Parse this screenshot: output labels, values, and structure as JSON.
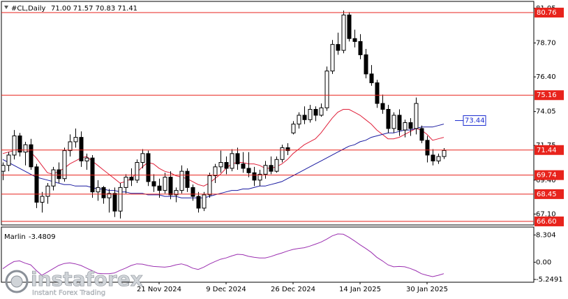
{
  "header": {
    "symbol": "#CL,Daily",
    "ohlc": "71.00 71.57 70.83 71.41"
  },
  "brand": {
    "name": "instaforex",
    "tagline": "Instant Forex Trading"
  },
  "chart_data": [
    {
      "type": "candlestick",
      "categories": [
        null,
        null,
        null,
        null,
        null,
        null,
        null,
        null,
        null,
        null,
        null,
        null,
        null,
        null,
        null,
        null,
        null,
        null,
        null,
        null,
        null,
        null,
        null,
        null,
        null,
        null,
        null,
        null,
        "21 Nov 2024",
        null,
        null,
        null,
        null,
        null,
        null,
        null,
        null,
        null,
        null,
        null,
        "9 Dec 2024",
        null,
        null,
        null,
        null,
        null,
        null,
        null,
        null,
        null,
        null,
        null,
        "26 Dec 2024",
        null,
        null,
        null,
        null,
        null,
        null,
        null,
        null,
        null,
        null,
        null,
        "14 Jan 2025",
        null,
        null,
        null,
        null,
        null,
        null,
        null,
        null,
        null,
        null,
        null,
        "30 Jan 2025",
        null,
        null,
        null
      ],
      "open": [
        70.0,
        70.4,
        71.1,
        72.4,
        71.3,
        71.8,
        70.3,
        67.9,
        68.3,
        69.0,
        70.1,
        69.5,
        71.4,
        72.0,
        72.3,
        70.7,
        70.9,
        68.6,
        68.9,
        68.2,
        68.5,
        67.3,
        68.9,
        69.6,
        69.4,
        70.6,
        71.2,
        69.3,
        69.0,
        68.7,
        69.6,
        68.4,
        68.7,
        70.0,
        68.9,
        68.3,
        67.5,
        68.4,
        69.7,
        70.3,
        70.6,
        70.2,
        71.2,
        70.5,
        70.2,
        69.9,
        69.4,
        69.8,
        70.4,
        70.0,
        70.8,
        71.6,
        72.6,
        73.2,
        73.8,
        73.5,
        74.2,
        73.8,
        74.3,
        76.8,
        78.6,
        78.2,
        80.6,
        79.0,
        78.8,
        77.9,
        76.6,
        76.0,
        74.6,
        74.2,
        72.9,
        73.8,
        72.8,
        73.3,
        72.9,
        72.9,
        72.1,
        71.1,
        70.7,
        71.0
      ],
      "high": [
        70.6,
        71.3,
        72.8,
        72.6,
        72.0,
        72.2,
        70.5,
        68.6,
        69.2,
        70.3,
        70.6,
        71.6,
        72.5,
        72.9,
        72.7,
        71.2,
        71.1,
        69.4,
        69.0,
        68.8,
        68.9,
        69.2,
        69.8,
        70.2,
        70.8,
        71.5,
        71.4,
        69.8,
        69.5,
        69.9,
        70.0,
        68.9,
        70.4,
        70.2,
        69.1,
        68.6,
        68.6,
        69.9,
        70.5,
        71.4,
        71.0,
        71.5,
        71.6,
        71.3,
        71.3,
        70.3,
        70.1,
        70.7,
        71.0,
        71.0,
        71.8,
        71.9,
        73.4,
        74.0,
        74.4,
        74.5,
        74.4,
        74.6,
        77.1,
        78.9,
        79.4,
        80.9,
        80.8,
        79.6,
        79.3,
        78.3,
        77.2,
        76.2,
        75.2,
        74.5,
        74.0,
        74.2,
        73.5,
        73.6,
        75.0,
        73.1,
        72.4,
        71.5,
        71.2,
        71.57
      ],
      "low": [
        69.4,
        70.0,
        70.8,
        71.0,
        70.4,
        70.1,
        67.5,
        67.2,
        67.8,
        68.7,
        69.2,
        69.3,
        71.0,
        71.6,
        70.3,
        70.1,
        68.2,
        68.0,
        67.8,
        67.2,
        66.9,
        66.8,
        68.5,
        69.0,
        69.2,
        70.2,
        69.0,
        68.6,
        68.2,
        68.5,
        68.1,
        67.9,
        68.5,
        68.6,
        68.0,
        67.2,
        67.3,
        68.2,
        69.2,
        69.9,
        69.8,
        70.0,
        70.1,
        69.9,
        69.6,
        69.0,
        69.0,
        69.5,
        69.8,
        69.9,
        70.6,
        71.1,
        72.5,
        72.9,
        73.2,
        73.3,
        73.4,
        73.7,
        74.1,
        76.6,
        77.9,
        78.0,
        78.8,
        78.4,
        77.6,
        76.3,
        75.8,
        74.3,
        73.9,
        72.6,
        72.6,
        72.4,
        72.3,
        72.4,
        72.5,
        71.9,
        70.6,
        70.4,
        70.5,
        70.83
      ],
      "close": [
        70.4,
        71.1,
        72.4,
        71.3,
        71.8,
        70.3,
        67.9,
        68.3,
        69.0,
        70.1,
        69.5,
        71.4,
        72.0,
        72.3,
        70.7,
        70.9,
        68.6,
        68.9,
        68.2,
        68.5,
        67.3,
        68.9,
        69.6,
        69.4,
        70.6,
        71.2,
        69.3,
        69.0,
        68.7,
        69.6,
        68.4,
        68.7,
        70.0,
        68.9,
        68.3,
        67.5,
        68.4,
        69.7,
        70.3,
        70.6,
        70.2,
        71.2,
        70.5,
        70.2,
        69.9,
        69.4,
        69.8,
        70.4,
        70.0,
        70.8,
        71.6,
        71.4,
        73.2,
        73.8,
        73.5,
        74.2,
        73.8,
        74.3,
        76.8,
        78.6,
        78.2,
        80.6,
        79.0,
        78.8,
        77.9,
        76.6,
        76.0,
        74.6,
        74.2,
        72.9,
        73.8,
        72.8,
        73.3,
        72.9,
        74.6,
        72.1,
        71.1,
        70.7,
        71.0,
        71.41
      ],
      "up_color": "#ffffff",
      "down_color": "#000000",
      "series": [
        {
          "color": "#e0203a",
          "values": [
            71.2,
            71.3,
            71.4,
            71.5,
            71.4,
            71.3,
            70.9,
            70.4,
            69.9,
            69.8,
            70.0,
            70.2,
            70.5,
            70.7,
            70.9,
            71.0,
            70.7,
            70.4,
            70.1,
            69.8,
            69.5,
            69.2,
            69.3,
            69.5,
            69.9,
            70.3,
            70.6,
            70.5,
            70.2,
            70.0,
            69.9,
            69.7,
            69.6,
            69.5,
            69.3,
            69.1,
            69.0,
            69.2,
            69.5,
            69.8,
            70.2,
            70.5,
            70.6,
            70.6,
            70.5,
            70.5,
            70.4,
            70.2,
            70.2,
            70.3,
            70.5,
            70.8,
            71.2,
            71.5,
            71.8,
            72.0,
            72.2,
            72.6,
            73.1,
            73.6,
            74.0,
            74.2,
            74.2,
            74.0,
            73.8,
            73.5,
            73.2,
            72.8,
            72.5,
            72.2,
            72.2,
            72.3,
            72.5,
            72.7,
            72.9,
            72.8,
            72.5,
            72.1,
            72.2,
            72.3
          ]
        },
        {
          "color": "#1a1aa0",
          "values": [
            70.8,
            70.6,
            70.4,
            70.2,
            70.0,
            69.8,
            69.6,
            69.5,
            69.4,
            69.3,
            69.2,
            69.1,
            69.1,
            69.0,
            69.0,
            69.0,
            68.9,
            68.8,
            68.8,
            68.7,
            68.7,
            68.6,
            68.6,
            68.5,
            68.5,
            68.5,
            68.4,
            68.4,
            68.4,
            68.3,
            68.3,
            68.3,
            68.2,
            68.2,
            68.2,
            68.2,
            68.2,
            68.3,
            68.4,
            68.5,
            68.6,
            68.7,
            68.7,
            68.8,
            68.8,
            68.9,
            69.0,
            69.0,
            69.1,
            69.2,
            69.3,
            69.5,
            69.7,
            69.9,
            70.1,
            70.3,
            70.5,
            70.7,
            70.9,
            71.1,
            71.3,
            71.5,
            71.7,
            71.8,
            72.0,
            72.1,
            72.3,
            72.4,
            72.5,
            72.6,
            72.6,
            72.7,
            72.8,
            72.8,
            72.9,
            73.0,
            73.0,
            73.0,
            73.1,
            73.2
          ]
        }
      ],
      "levels": [
        80.76,
        75.16,
        71.44,
        69.74,
        68.45,
        {
          "value": 66.6,
          "label": "66.60"
        }
      ],
      "level_color": "#e8231c",
      "marker": {
        "value": 73.44,
        "color": "#1a2bd0"
      },
      "ylim": [
        66.36,
        81.52
      ],
      "yticks": [
        81.05,
        {
          "value": 78.7,
          "label": "78.70"
        },
        {
          "value": 76.4,
          "label": "76.40"
        },
        74.05,
        71.75,
        {
          "value": 69.4,
          "label": "69.40"
        },
        {
          "value": 67.1,
          "label": "67.10"
        }
      ],
      "grid": false
    },
    {
      "type": "line",
      "name": "Marlin",
      "current": -3.4809,
      "color": "#9b2fb0",
      "values": [
        -2.0,
        -0.8,
        0.2,
        0.4,
        -0.3,
        -0.8,
        -2.5,
        -4.0,
        -3.0,
        -2.0,
        -1.0,
        -0.4,
        -0.2,
        -0.5,
        -1.0,
        -1.8,
        -2.6,
        -3.4,
        -3.5,
        -3.5,
        -3.3,
        -2.5,
        -1.8,
        -1.0,
        -0.5,
        -0.6,
        -1.0,
        -1.3,
        -1.4,
        -1.5,
        -1.3,
        -0.8,
        -0.5,
        -1.0,
        -1.8,
        -2.2,
        -1.5,
        -0.6,
        0.2,
        0.9,
        1.3,
        1.9,
        2.4,
        2.3,
        1.8,
        1.5,
        1.3,
        1.3,
        1.7,
        2.3,
        2.8,
        3.4,
        3.9,
        4.2,
        4.4,
        4.9,
        5.5,
        6.1,
        7.0,
        8.0,
        8.6,
        8.5,
        7.6,
        6.5,
        5.3,
        4.2,
        3.0,
        1.5,
        0.4,
        -0.8,
        -1.4,
        -1.3,
        -1.4,
        -1.9,
        -2.6,
        -3.5,
        -4.0,
        -4.4,
        -4.0,
        -3.4809
      ],
      "ylim": [
        -6.1,
        10.7
      ],
      "yticks": [
        8.304,
        {
          "value": 0,
          "label": "0.00"
        },
        -5.2491
      ]
    }
  ]
}
